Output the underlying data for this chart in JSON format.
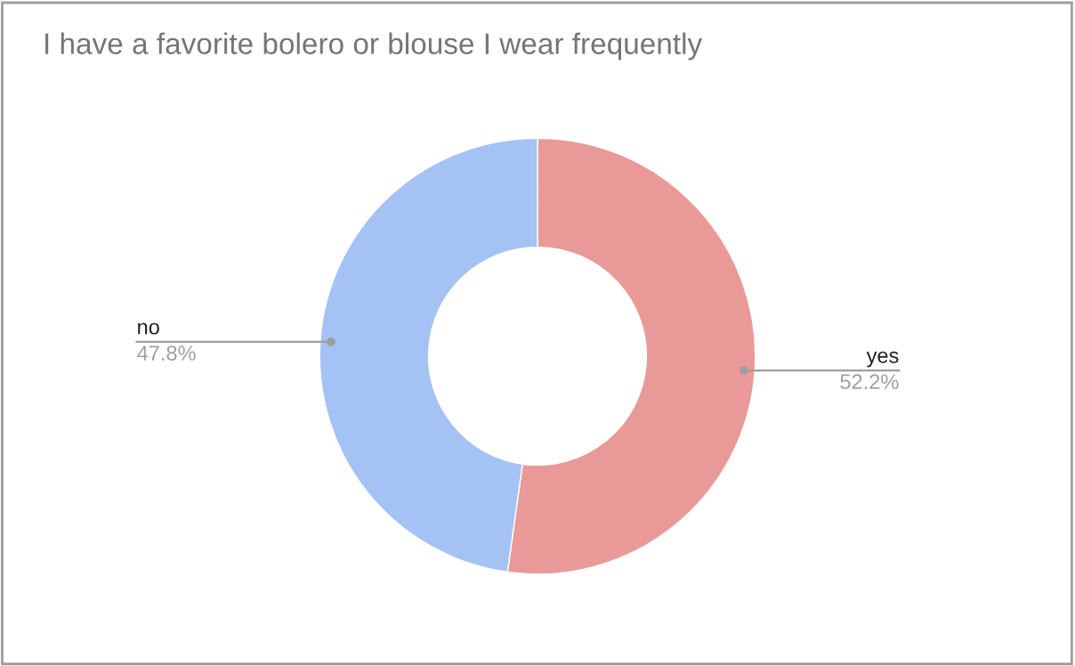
{
  "chart_data": {
    "type": "donut",
    "title": "I have a favorite bolero or blouse I wear frequently",
    "categories": [
      "yes",
      "no"
    ],
    "values": [
      52.2,
      47.8
    ],
    "value_labels": [
      "52.2%",
      "47.8%"
    ],
    "colors": [
      "#ea9999",
      "#a4c2f4"
    ],
    "legend": false
  }
}
